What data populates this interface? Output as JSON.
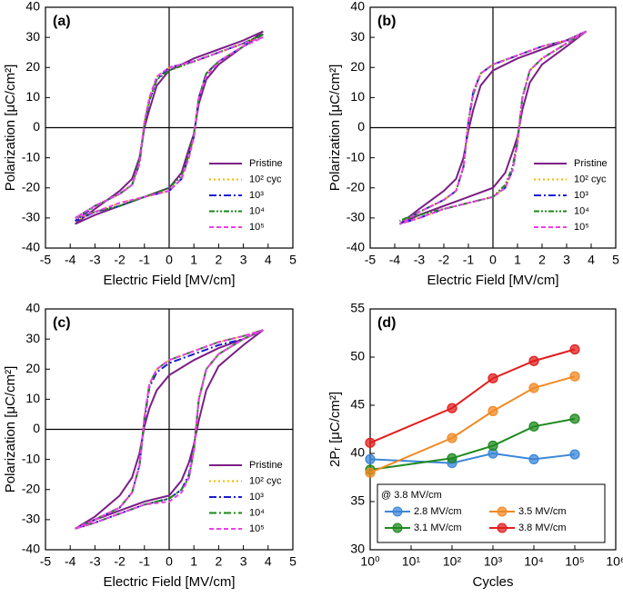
{
  "chart_data": [
    {
      "type": "line",
      "title": "(a)",
      "x_label": "Electric Field [MV/cm]",
      "y_label": "Polarization [μC/cm²]",
      "xlim": [
        -5,
        5
      ],
      "ylim": [
        -40,
        40
      ],
      "xticks": [
        -5,
        -4,
        -3,
        -2,
        -1,
        0,
        1,
        2,
        3,
        4,
        5
      ],
      "yticks": [
        -40,
        -30,
        -20,
        -10,
        0,
        10,
        20,
        30,
        40
      ],
      "zero_axes": true,
      "x": [
        3.8,
        3,
        2,
        1,
        0,
        -0.5,
        -0.8,
        -1,
        -1.2,
        -1.5,
        -2,
        -3,
        -3.8,
        -3,
        -2,
        -1,
        0,
        0.5,
        0.8,
        1,
        1.2,
        1.5,
        2,
        3,
        3.8
      ],
      "series": [
        {
          "name": "Pristine",
          "color": "#7b1f86",
          "dash": "solid",
          "values": [
            32,
            29,
            26,
            23,
            19,
            14,
            6,
            0,
            -10,
            -17,
            -21,
            -27,
            -32,
            -29,
            -26,
            -23,
            -20,
            -15,
            -7,
            -2,
            8,
            16,
            21,
            27,
            32
          ]
        },
        {
          "name": "10² cyc",
          "color": "#f5b800",
          "dash": "dot",
          "values": [
            31,
            28,
            25,
            22,
            20,
            17,
            10,
            2,
            -12,
            -19,
            -22,
            -26,
            -31,
            -28,
            -25,
            -23,
            -21,
            -17,
            -10,
            -3,
            10,
            18,
            22,
            27,
            31
          ]
        },
        {
          "name": "10³",
          "color": "#1a1ad6",
          "dash": "dashdot",
          "values": [
            31,
            28,
            25,
            22,
            20,
            16,
            9,
            1,
            -12,
            -19,
            -22,
            -26,
            -31,
            -28,
            -26,
            -23,
            -21,
            -17,
            -9,
            -3,
            10,
            18,
            22,
            27,
            31
          ]
        },
        {
          "name": "10⁴",
          "color": "#1a8a1a",
          "dash": "dashdotdot",
          "values": [
            31,
            28,
            25,
            22,
            19,
            16,
            9,
            1,
            -11,
            -19,
            -22,
            -26,
            -30,
            -28,
            -26,
            -23,
            -20,
            -16,
            -9,
            -2,
            10,
            18,
            22,
            27,
            31
          ]
        },
        {
          "name": "10⁵",
          "color": "#ee3ee8",
          "dash": "dash",
          "values": [
            30,
            28,
            25,
            22,
            20,
            17,
            10,
            2,
            -12,
            -19,
            -22,
            -26,
            -30,
            -28,
            -25,
            -23,
            -21,
            -17,
            -10,
            -3,
            10,
            17,
            22,
            27,
            30
          ]
        }
      ]
    },
    {
      "type": "line",
      "title": "(b)",
      "x_label": "Electric Field [MV/cm]",
      "y_label": "Polarization [μC/cm²]",
      "xlim": [
        -5,
        5
      ],
      "ylim": [
        -40,
        40
      ],
      "xticks": [
        -5,
        -4,
        -3,
        -2,
        -1,
        0,
        1,
        2,
        3,
        4,
        5
      ],
      "yticks": [
        -40,
        -30,
        -20,
        -10,
        0,
        10,
        20,
        30,
        40
      ],
      "zero_axes": true,
      "x": [
        3.8,
        3,
        2,
        1,
        0,
        -0.5,
        -0.8,
        -1,
        -1.2,
        -1.5,
        -2,
        -3,
        -3.8,
        -3,
        -2,
        -1,
        0,
        0.5,
        0.8,
        1,
        1.2,
        1.5,
        2,
        3,
        3.8
      ],
      "series": [
        {
          "name": "Pristine",
          "color": "#7b1f86",
          "dash": "solid",
          "values": [
            32,
            29,
            26,
            23,
            19,
            14,
            6,
            -1,
            -10,
            -17,
            -21,
            -27,
            -32,
            -29,
            -26,
            -23,
            -20,
            -15,
            -8,
            -3,
            6,
            15,
            21,
            27,
            32
          ]
        },
        {
          "name": "10² cyc",
          "color": "#f5b800",
          "dash": "dot",
          "values": [
            32,
            29,
            27,
            24,
            21,
            18,
            12,
            2,
            -13,
            -21,
            -24,
            -28,
            -32,
            -30,
            -27,
            -25,
            -23,
            -20,
            -14,
            -5,
            10,
            19,
            23,
            28,
            32
          ]
        },
        {
          "name": "10³",
          "color": "#1a1ad6",
          "dash": "dashdot",
          "values": [
            32,
            29,
            27,
            24,
            21,
            18,
            12,
            2,
            -13,
            -21,
            -24,
            -28,
            -32,
            -30,
            -27,
            -25,
            -23,
            -20,
            -14,
            -5,
            10,
            19,
            23,
            28,
            32
          ]
        },
        {
          "name": "10⁴",
          "color": "#1a8a1a",
          "dash": "dashdotdot",
          "values": [
            32,
            29,
            27,
            24,
            21,
            18,
            11,
            2,
            -13,
            -21,
            -24,
            -28,
            -31,
            -29,
            -27,
            -25,
            -23,
            -19,
            -13,
            -4,
            10,
            19,
            23,
            28,
            32
          ]
        },
        {
          "name": "10⁵",
          "color": "#ee3ee8",
          "dash": "dash",
          "values": [
            32,
            29,
            27,
            24,
            21,
            18,
            12,
            2,
            -13,
            -21,
            -24,
            -28,
            -32,
            -30,
            -27,
            -25,
            -23,
            -20,
            -14,
            -5,
            10,
            19,
            23,
            28,
            32
          ]
        }
      ]
    },
    {
      "type": "line",
      "title": "(c)",
      "x_label": "Electric Field [MV/cm]",
      "y_label": "Polarization [μC/cm²]",
      "xlim": [
        -5,
        5
      ],
      "ylim": [
        -40,
        40
      ],
      "xticks": [
        -5,
        -4,
        -3,
        -2,
        -1,
        0,
        1,
        2,
        3,
        4,
        5
      ],
      "yticks": [
        -40,
        -30,
        -20,
        -10,
        0,
        10,
        20,
        30,
        40
      ],
      "zero_axes": true,
      "x": [
        3.8,
        3,
        2,
        1,
        0,
        -0.5,
        -0.8,
        -1,
        -1.2,
        -1.5,
        -2,
        -3,
        -3.8,
        -3,
        -2,
        -1,
        0,
        0.5,
        0.8,
        1,
        1.2,
        1.5,
        2,
        3,
        3.8
      ],
      "series": [
        {
          "name": "Pristine",
          "color": "#7b1f86",
          "dash": "solid",
          "values": [
            33,
            30,
            27,
            23,
            18,
            13,
            7,
            1,
            -8,
            -16,
            -22,
            -29,
            -33,
            -30,
            -27,
            -24,
            -22,
            -17,
            -11,
            -5,
            3,
            13,
            21,
            28,
            33
          ]
        },
        {
          "name": "10² cyc",
          "color": "#f5b800",
          "dash": "dot",
          "values": [
            33,
            31,
            29,
            26,
            23,
            20,
            15,
            4,
            -12,
            -21,
            -26,
            -30,
            -33,
            -31,
            -28,
            -25,
            -23,
            -20,
            -16,
            -7,
            10,
            20,
            25,
            30,
            33
          ]
        },
        {
          "name": "10³",
          "color": "#1a1ad6",
          "dash": "dashdot",
          "values": [
            33,
            30,
            28,
            25,
            22,
            19,
            14,
            3,
            -12,
            -21,
            -26,
            -30,
            -33,
            -31,
            -28,
            -25,
            -23,
            -20,
            -15,
            -6,
            10,
            20,
            25,
            30,
            33
          ]
        },
        {
          "name": "10⁴",
          "color": "#1a8a1a",
          "dash": "dashdot",
          "values": [
            33,
            31,
            29,
            26,
            23,
            20,
            15,
            4,
            -12,
            -21,
            -26,
            -30,
            -33,
            -31,
            -28,
            -25,
            -23,
            -20,
            -16,
            -7,
            10,
            20,
            25,
            30,
            33
          ]
        },
        {
          "name": "10⁵",
          "color": "#ee3ee8",
          "dash": "dash",
          "values": [
            33,
            31,
            29,
            26,
            23,
            20,
            15,
            4,
            -12,
            -21,
            -26,
            -30,
            -33,
            -31,
            -28,
            -25,
            -24,
            -21,
            -16,
            -7,
            10,
            20,
            25,
            30,
            33
          ]
        }
      ]
    },
    {
      "type": "line",
      "title": "(d)",
      "x_label": "Cycles",
      "y_label": "2Pᵣ [μC/cm²]",
      "legend_title": "@ 3.8 MV/cm",
      "xlog": true,
      "markers": true,
      "xlim": [
        1,
        1000000
      ],
      "ylim": [
        30,
        55
      ],
      "xticks": [
        {
          "value": 1,
          "label": "10⁰"
        },
        {
          "value": 10,
          "label": "10¹"
        },
        {
          "value": 100,
          "label": "10²"
        },
        {
          "value": 1000,
          "label": "10³"
        },
        {
          "value": 10000,
          "label": "10⁴"
        },
        {
          "value": 100000,
          "label": "10⁵"
        },
        {
          "value": 1000000,
          "label": "10⁶"
        }
      ],
      "yticks": [
        30,
        35,
        40,
        45,
        50,
        55
      ],
      "x": [
        1,
        100,
        1000,
        10000,
        100000
      ],
      "series": [
        {
          "name": "2.8 MV/cm",
          "color": "#3a86d8",
          "dash": "solid",
          "values": [
            39.4,
            39,
            40,
            39.4,
            39.9
          ]
        },
        {
          "name": "3.1 MV/cm",
          "color": "#1e8a1e",
          "dash": "solid",
          "values": [
            38.3,
            39.5,
            40.8,
            42.8,
            43.6
          ]
        },
        {
          "name": "3.5 MV/cm",
          "color": "#f08a24",
          "dash": "solid",
          "values": [
            38,
            41.6,
            44.4,
            46.8,
            48
          ]
        },
        {
          "name": "3.8 MV/cm",
          "color": "#e21d1d",
          "dash": "solid",
          "values": [
            41.1,
            44.7,
            47.8,
            49.6,
            50.8
          ]
        }
      ]
    }
  ]
}
